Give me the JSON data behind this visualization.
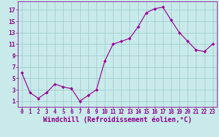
{
  "x": [
    0,
    1,
    2,
    3,
    4,
    5,
    6,
    7,
    8,
    9,
    10,
    11,
    12,
    13,
    14,
    15,
    16,
    17,
    18,
    19,
    20,
    21,
    22,
    23
  ],
  "y": [
    6,
    2.5,
    1.5,
    2.5,
    4,
    3.5,
    3.2,
    1,
    2,
    3,
    8,
    11,
    11.5,
    12,
    14,
    16.5,
    17.2,
    17.5,
    15.2,
    13,
    11.5,
    10,
    9.7,
    11
  ],
  "line_color": "#990099",
  "marker": "D",
  "marker_size": 2,
  "bg_color": "#c8eaea",
  "grid_color": "#a0cccc",
  "xlabel": "Windchill (Refroidissement éolien,°C)",
  "xlabel_color": "#880088",
  "xlabel_fontsize": 7,
  "tick_color": "#880088",
  "tick_fontsize": 5.5,
  "ytick_labels": [
    "1",
    "3",
    "5",
    "7",
    "9",
    "11",
    "13",
    "15",
    "17"
  ],
  "ytick_vals": [
    1,
    3,
    5,
    7,
    9,
    11,
    13,
    15,
    17
  ],
  "xticks": [
    0,
    1,
    2,
    3,
    4,
    5,
    6,
    7,
    8,
    9,
    10,
    11,
    12,
    13,
    14,
    15,
    16,
    17,
    18,
    19,
    20,
    21,
    22,
    23
  ],
  "xlim": [
    -0.5,
    23.5
  ],
  "ylim": [
    0,
    18.5
  ]
}
